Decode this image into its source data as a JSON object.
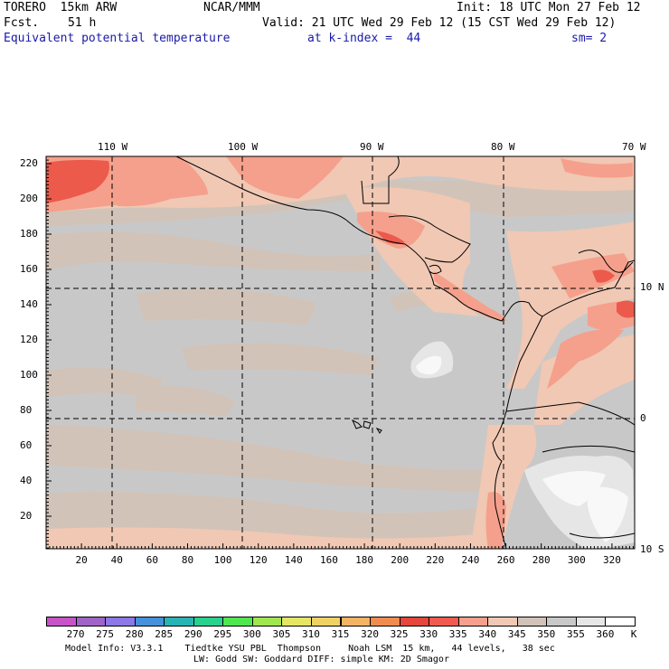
{
  "header": {
    "model": "TORERO  15km ARW",
    "org": "NCAR/MMM",
    "init": "Init: 18 UTC Mon 27 Feb 12",
    "fcst_label": "Fcst.",
    "fcst_value": "51 h",
    "valid": "Valid: 21 UTC Wed 29 Feb 12 (15 CST Wed 29 Feb 12)",
    "field": "Equivalent potential temperature",
    "level": "at k-index =  44",
    "smoothing": "sm= 2"
  },
  "map": {
    "top_lon_labels": [
      "110 W",
      "100 W",
      "90 W",
      "80 W",
      "70 W"
    ],
    "right_lat_labels": [
      "10 N",
      "0",
      "10 S"
    ],
    "left_y_ticks": [
      "220",
      "200",
      "180",
      "160",
      "140",
      "120",
      "100",
      "80",
      "60",
      "40",
      "20"
    ],
    "bottom_x_ticks": [
      "20",
      "40",
      "60",
      "80",
      "100",
      "120",
      "140",
      "160",
      "180",
      "200",
      "220",
      "240",
      "260",
      "280",
      "300",
      "320"
    ]
  },
  "colorbar": {
    "labels": [
      "270",
      "275",
      "280",
      "285",
      "290",
      "295",
      "300",
      "305",
      "310",
      "315",
      "320",
      "325",
      "330",
      "335",
      "340",
      "345",
      "350",
      "355",
      "360"
    ],
    "unit": "K",
    "colors": [
      "#c853c8",
      "#a064c8",
      "#8c78e6",
      "#4690dc",
      "#28b4b4",
      "#28d28c",
      "#50e650",
      "#a0e650",
      "#e6e664",
      "#f0d264",
      "#f5b464",
      "#f08c50",
      "#e6463c",
      "#f05a50",
      "#f5a08c",
      "#f0c8b4",
      "#d2c3b9",
      "#c8c8c8",
      "#e6e6e6",
      "#ffffff"
    ]
  },
  "footer": {
    "line1": "Model Info: V3.3.1    Tiedtke YSU PBL  Thompson     Noah LSM  15 km,   44 levels,   38 sec",
    "line2": "LW: Godd SW: Goddard DIFF: simple KM: 2D Smagor"
  }
}
